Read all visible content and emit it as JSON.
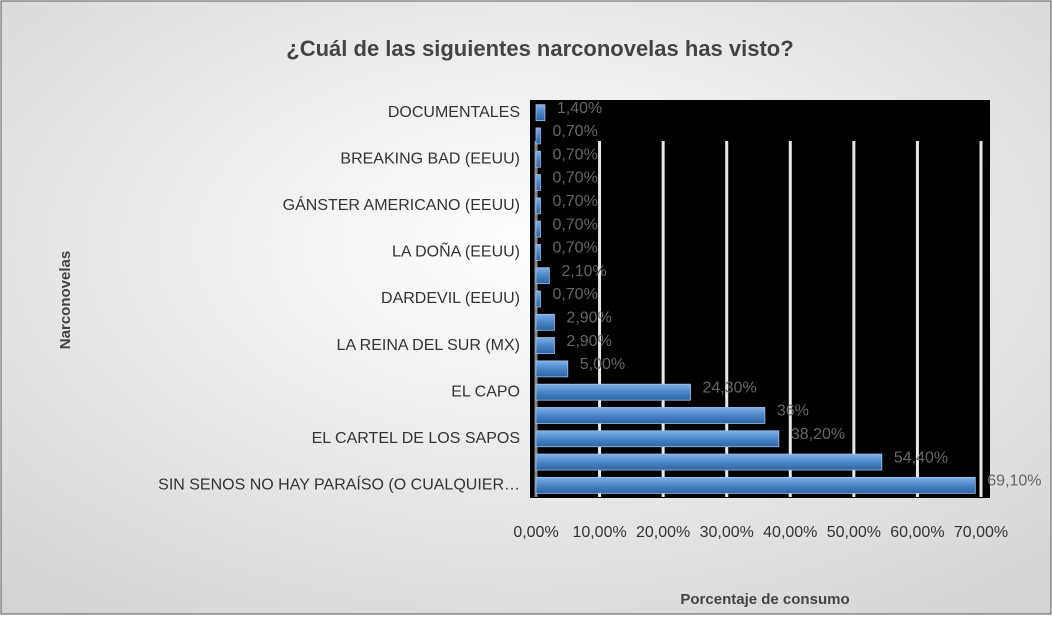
{
  "chart_data": {
    "type": "bar",
    "orientation": "horizontal",
    "title": "¿Cuál de las siguientes narconovelas has visto?",
    "y_label": "Narconovelas",
    "x_label": "Porcentaje de consumo",
    "categories": [
      "DOCUMENTALES",
      null,
      "BREAKING BAD (EEUU)",
      null,
      "GÁNSTER AMERICANO (EEUU)",
      null,
      "LA DOÑA (EEUU)",
      null,
      "DARDEVIL (EEUU)",
      null,
      "LA REINA DEL SUR (MX)",
      null,
      "EL CAPO",
      null,
      "EL CARTEL DE LOS SAPOS",
      null,
      "SIN SENOS NO HAY PARAÍSO (O CUALQUIER…"
    ],
    "values": [
      1.4,
      0.7,
      0.7,
      0.7,
      0.7,
      0.7,
      0.7,
      2.1,
      0.7,
      2.9,
      2.9,
      5.0,
      24.3,
      36,
      38.2,
      54.4,
      69.1
    ],
    "value_labels": [
      "1,40%",
      "0,70%",
      "0,70%",
      "0,70%",
      "0,70%",
      "0,70%",
      "0,70%",
      "2,10%",
      "0,70%",
      "2,90%",
      "2,90%",
      "5,00%",
      "24,30%",
      "36%",
      "38,20%",
      "54,40%",
      "69,10%"
    ],
    "color": "#4a86c8",
    "xlim": [
      0,
      70
    ],
    "xticks": [
      {
        "value": 0,
        "label": "0,00%"
      },
      {
        "value": 10,
        "label": "10,00%"
      },
      {
        "value": 20,
        "label": "20,00%"
      },
      {
        "value": 30,
        "label": "30,00%"
      },
      {
        "value": 40,
        "label": "40,00%"
      },
      {
        "value": 50,
        "label": "50,00%"
      },
      {
        "value": 60,
        "label": "60,00%"
      },
      {
        "value": 70,
        "label": "70,00%"
      }
    ],
    "grid": true
  }
}
